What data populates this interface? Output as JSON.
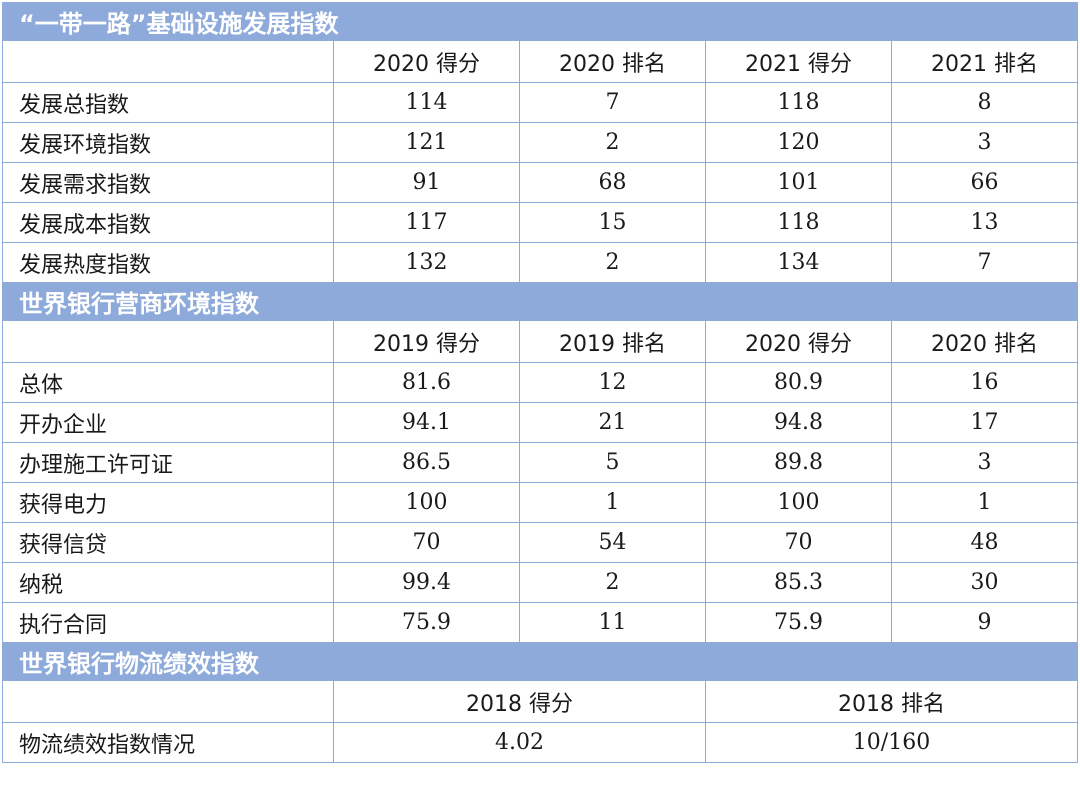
{
  "sections": [
    {
      "title": "“一带一路”基础设施发展指数",
      "headers": [
        "2020 得分",
        "2020 排名",
        "2021 得分",
        "2021 排名"
      ],
      "rows": [
        [
          "发展总指数",
          "114",
          "7",
          "118",
          "8"
        ],
        [
          "发展环境指数",
          "121",
          "2",
          "120",
          "3"
        ],
        [
          "发展需求指数",
          "91",
          "68",
          "101",
          "66"
        ],
        [
          "发展成本指数",
          "117",
          "15",
          "118",
          "13"
        ],
        [
          "发展热度指数",
          "132",
          "2",
          "134",
          "7"
        ]
      ]
    },
    {
      "title": "世界银行营商环境指数",
      "headers": [
        "2019 得分",
        "2019 排名",
        "2020 得分",
        "2020 排名"
      ],
      "rows": [
        [
          "总体",
          "81.6",
          "12",
          "80.9",
          "16"
        ],
        [
          "开办企业",
          "94.1",
          "21",
          "94.8",
          "17"
        ],
        [
          "办理施工许可证",
          "86.5",
          "5",
          "89.8",
          "3"
        ],
        [
          "获得电力",
          "100",
          "1",
          "100",
          "1"
        ],
        [
          "获得信贷",
          "70",
          "54",
          "70",
          "48"
        ],
        [
          "纳税",
          "99.4",
          "2",
          "85.3",
          "30"
        ],
        [
          "执行合同",
          "75.9",
          "11",
          "75.9",
          "9"
        ]
      ]
    },
    {
      "title": "世界银行物流绩效指数",
      "headers": [
        "2018 得分",
        "2018 排名"
      ],
      "rows": [
        [
          "物流绩效指数情况",
          "4.02",
          "10/160"
        ]
      ]
    }
  ]
}
